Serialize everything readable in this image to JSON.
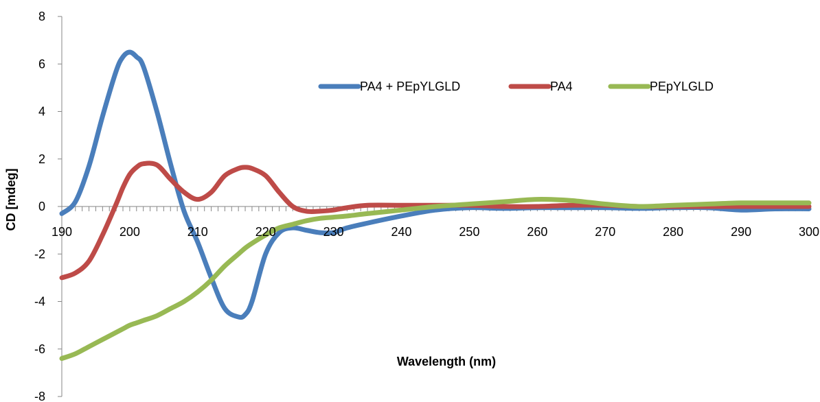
{
  "chart_data": {
    "type": "line",
    "title": "",
    "xlabel": "Wavelength (nm)",
    "ylabel": "CD [mdeg]",
    "xlim": [
      190,
      300
    ],
    "ylim": [
      -8,
      8
    ],
    "x_ticks": [
      190,
      200,
      210,
      220,
      230,
      240,
      250,
      260,
      270,
      280,
      290,
      300
    ],
    "y_ticks": [
      -8,
      -6,
      -4,
      -2,
      0,
      2,
      4,
      6,
      8
    ],
    "grid": false,
    "legend_position": "top-right",
    "x": [
      190,
      192,
      194,
      196,
      198,
      199,
      200,
      201,
      202,
      204,
      206,
      208,
      210,
      212,
      214,
      216,
      217,
      218,
      220,
      222,
      224,
      226,
      228,
      230,
      232,
      235,
      240,
      245,
      250,
      255,
      260,
      265,
      270,
      275,
      280,
      285,
      290,
      295,
      300
    ],
    "series": [
      {
        "name": "PA4 + PEpYLGLD",
        "color": "#4a7ebb",
        "values": [
          -0.3,
          0.2,
          1.7,
          3.8,
          5.7,
          6.3,
          6.5,
          6.3,
          5.9,
          4.0,
          1.8,
          -0.2,
          -1.5,
          -3.0,
          -4.3,
          -4.65,
          -4.55,
          -4.0,
          -2.0,
          -1.1,
          -0.9,
          -1.0,
          -1.1,
          -1.1,
          -0.9,
          -0.7,
          -0.4,
          -0.15,
          -0.05,
          -0.08,
          -0.05,
          -0.05,
          -0.05,
          -0.08,
          -0.05,
          -0.05,
          -0.15,
          -0.1,
          -0.1
        ]
      },
      {
        "name": "PA4",
        "color": "#be4b48",
        "values": [
          -3.0,
          -2.8,
          -2.3,
          -1.2,
          0.1,
          0.8,
          1.35,
          1.65,
          1.8,
          1.75,
          1.15,
          0.6,
          0.3,
          0.6,
          1.3,
          1.6,
          1.65,
          1.6,
          1.3,
          0.6,
          0.0,
          -0.2,
          -0.2,
          -0.15,
          -0.05,
          0.05,
          0.05,
          0.05,
          0.05,
          0.0,
          0.0,
          0.05,
          0.05,
          0.0,
          0.0,
          0.0,
          0.0,
          0.0,
          0.0
        ]
      },
      {
        "name": "PEpYLGLD",
        "color": "#98b954",
        "values": [
          -6.4,
          -6.2,
          -5.9,
          -5.6,
          -5.3,
          -5.15,
          -5.0,
          -4.9,
          -4.8,
          -4.6,
          -4.3,
          -4.0,
          -3.6,
          -3.1,
          -2.5,
          -2.0,
          -1.75,
          -1.55,
          -1.2,
          -0.9,
          -0.75,
          -0.6,
          -0.5,
          -0.45,
          -0.4,
          -0.3,
          -0.15,
          0.0,
          0.1,
          0.2,
          0.3,
          0.25,
          0.1,
          0.0,
          0.05,
          0.1,
          0.15,
          0.15,
          0.15
        ]
      }
    ]
  }
}
